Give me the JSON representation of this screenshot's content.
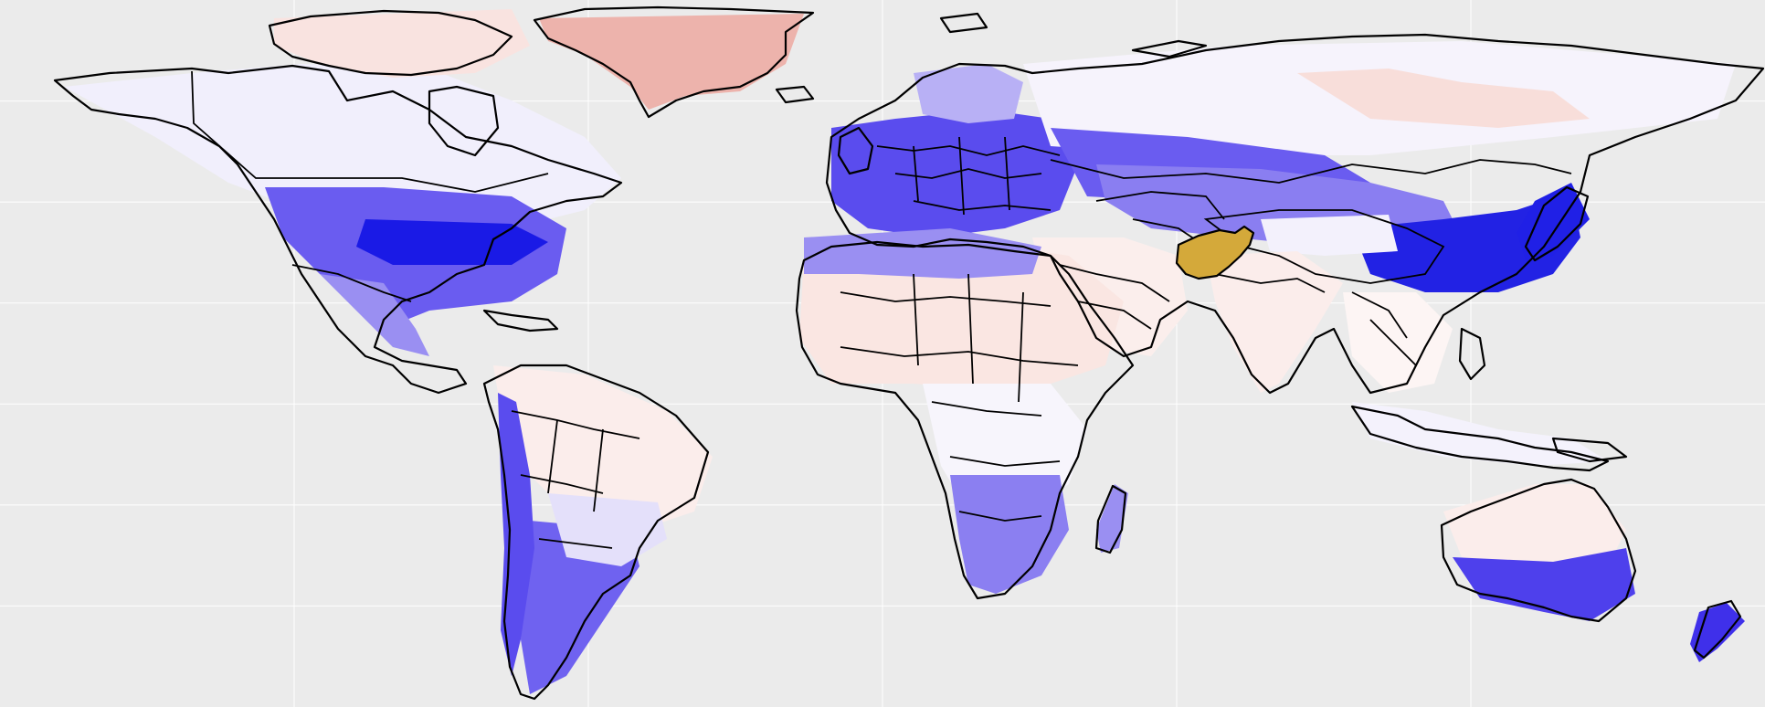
{
  "map": {
    "kind": "choropleth-grid",
    "projection": "equirectangular",
    "background_color": "#EBEBEB",
    "gridline_color": "#FFFFFF",
    "highlighted_country": {
      "name": "Afghanistan",
      "color": "#D4A93A"
    },
    "colors": {
      "strong_blue": "#1010E8",
      "mid_blue": "#6A5CF0",
      "light_blue": "#C9C4F7",
      "pale": "#F4F2FB",
      "neutral": "#FFFFFF",
      "pale_red": "#F7DCD8",
      "red": "#EDA59F"
    },
    "legend": null,
    "title": "",
    "axis_labels": {
      "x": "",
      "y": ""
    }
  }
}
